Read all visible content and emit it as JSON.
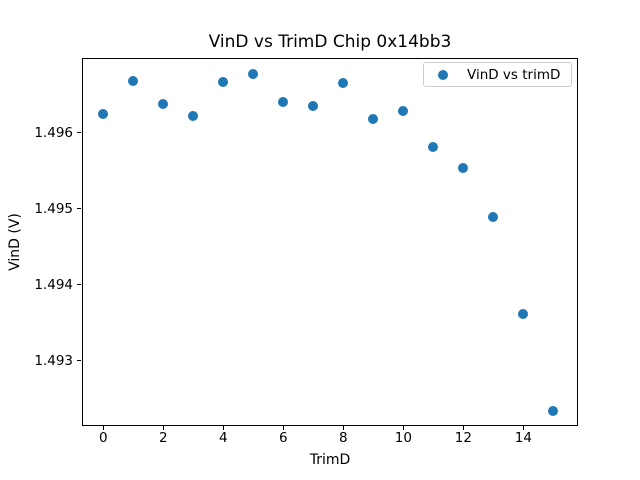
{
  "chart_data": {
    "type": "scatter",
    "title": "VinD vs TrimD Chip 0x14bb3",
    "xlabel": "TrimD",
    "ylabel": "VinD (V)",
    "legend": {
      "label": "VinD vs trimD",
      "position": "upper right"
    },
    "series": [
      {
        "name": "VinD vs trimD",
        "x": [
          0,
          1,
          2,
          3,
          4,
          5,
          6,
          7,
          8,
          9,
          10,
          11,
          12,
          13,
          14,
          15
        ],
        "y": [
          1.49625,
          1.49668,
          1.49638,
          1.49622,
          1.49667,
          1.49677,
          1.4964,
          1.49635,
          1.49665,
          1.49618,
          1.49628,
          1.49581,
          1.49553,
          1.49489,
          1.49361,
          1.49234
        ]
      }
    ],
    "marker_color": "#1f77b4",
    "xlim": [
      -0.71,
      15.82
    ],
    "ylim": [
      1.49214,
      1.49698
    ],
    "xticks": [
      0,
      2,
      4,
      6,
      8,
      10,
      12,
      14
    ],
    "xticklabels": [
      "0",
      "2",
      "4",
      "6",
      "8",
      "10",
      "12",
      "14"
    ],
    "yticks": [
      1.493,
      1.494,
      1.495,
      1.496
    ],
    "yticklabels": [
      "1.493",
      "1.494",
      "1.495",
      "1.496"
    ],
    "grid": false
  }
}
